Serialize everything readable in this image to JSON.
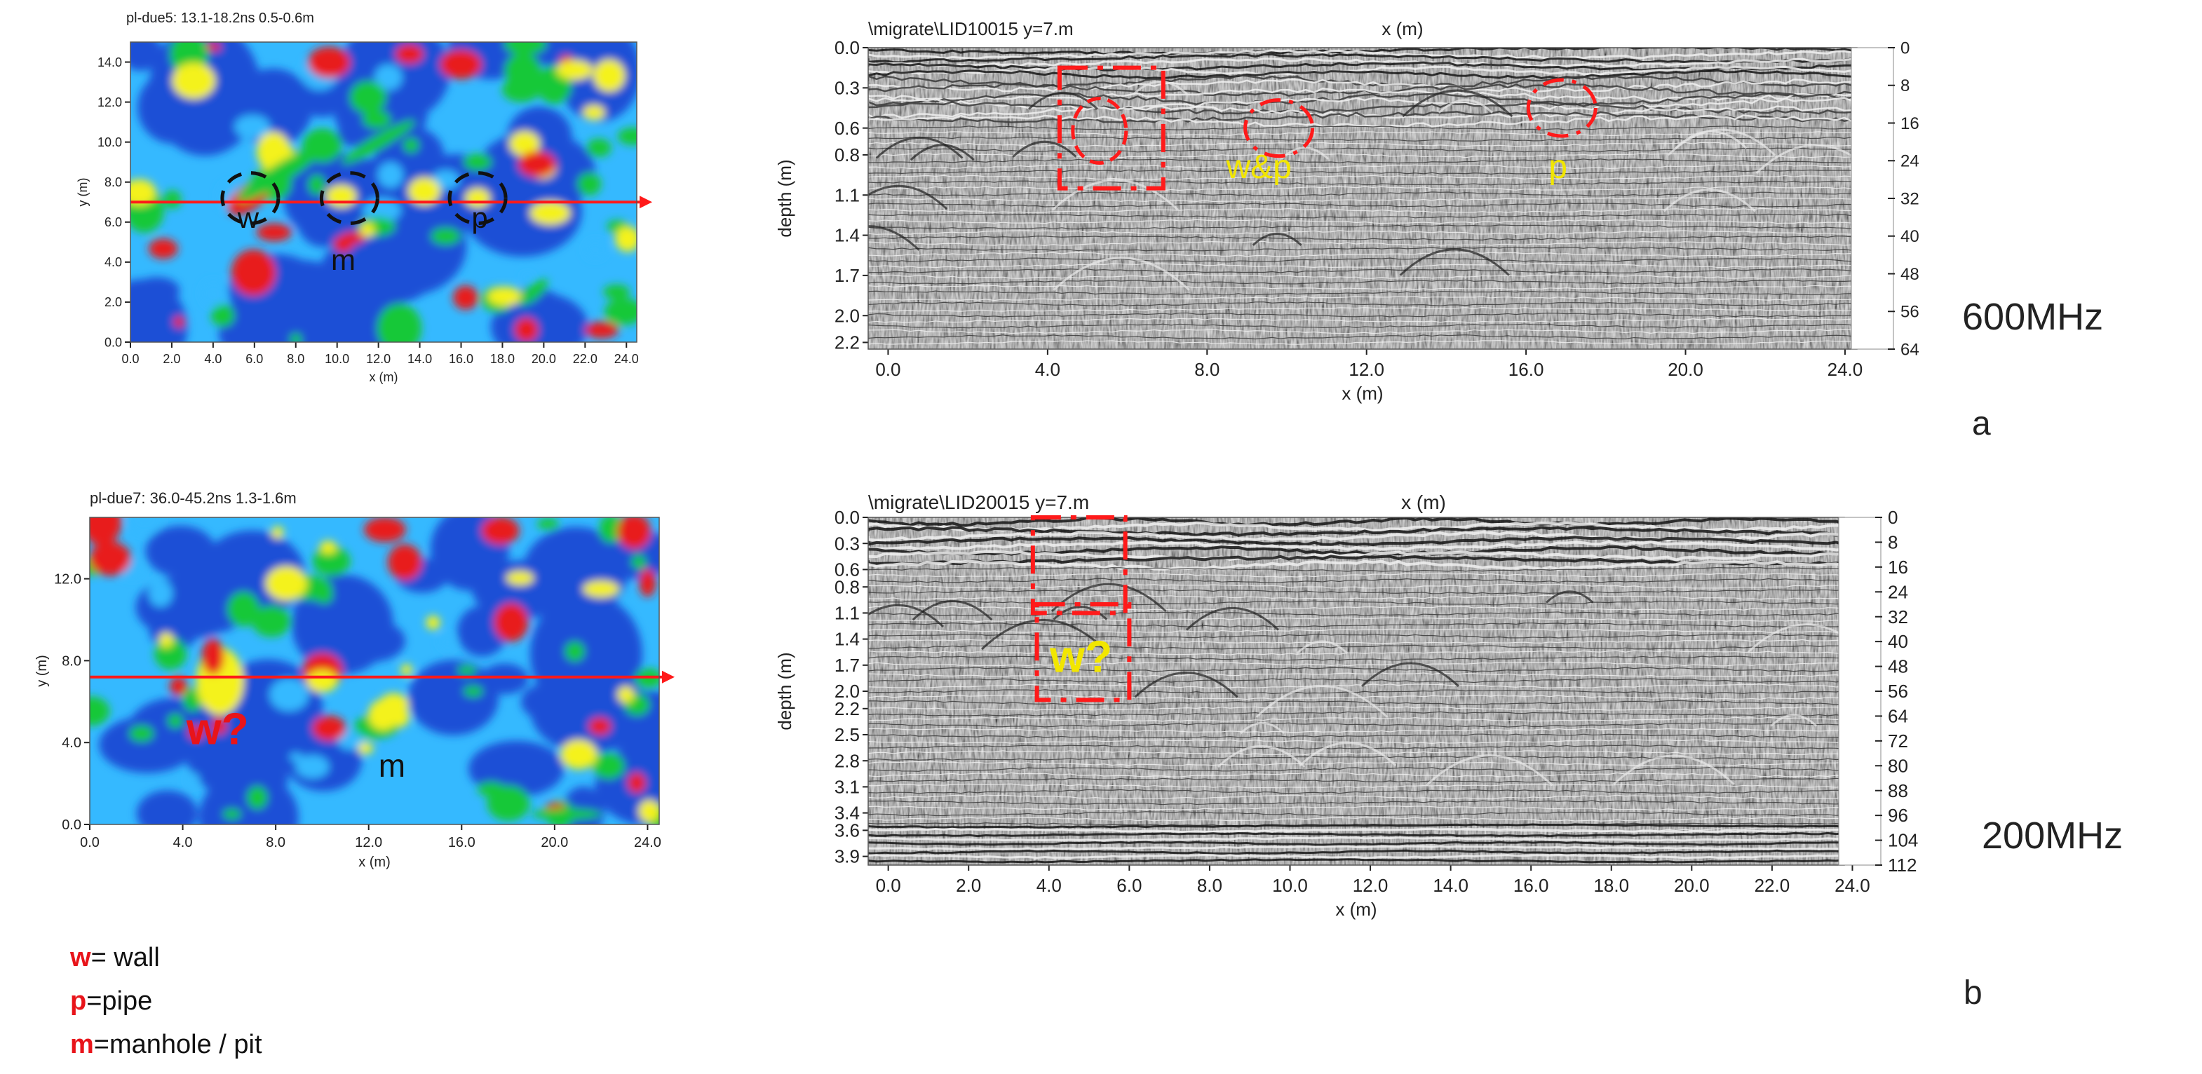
{
  "colors": {
    "axis": "#222222",
    "red": "#ff1a1a",
    "annotation_red": "#e8141a",
    "annotation_yellow": "#f2e600",
    "map_low": "#1b4fd6",
    "map_mid": "#35b9ff",
    "map_green": "#19c837",
    "map_yellow": "#f4f21a",
    "map_high": "#e81e1e"
  },
  "panels": {
    "a_label": "a",
    "b_label": "b",
    "freq_a": "600MHz",
    "freq_b": "200MHz"
  },
  "legend": [
    {
      "key": "w",
      "text": "= wall"
    },
    {
      "key": "p",
      "text": "=pipe"
    },
    {
      "key": "m",
      "text": "=manhole / pit"
    }
  ],
  "chart_data": [
    {
      "id": "map_a",
      "type": "heatmap",
      "title": "pl-due5:  13.1-18.2ns  0.5-0.6m",
      "xlabel": "x (m)",
      "ylabel": "y (m)",
      "xlim": [
        0,
        24.5
      ],
      "ylim": [
        0,
        15
      ],
      "x_ticks": [
        "0.0",
        "2.0",
        "4.0",
        "6.0",
        "8.0",
        "10.0",
        "12.0",
        "14.0",
        "16.0",
        "18.0",
        "20.0",
        "22.0",
        "24.0"
      ],
      "y_ticks": [
        "0.0",
        "2.0",
        "4.0",
        "6.0",
        "8.0",
        "10.0",
        "12.0",
        "14.0"
      ],
      "profile_line_y": 7.0,
      "annotations": [
        {
          "label": "w",
          "x": 5.7,
          "y": 6.2
        },
        {
          "label": "m",
          "x": 10.3,
          "y": 4.1
        },
        {
          "label": "p",
          "x": 16.9,
          "y": 6.2
        }
      ],
      "circles": [
        {
          "x": 5.8,
          "y": 7.2
        },
        {
          "x": 10.6,
          "y": 7.2
        },
        {
          "x": 16.8,
          "y": 7.2
        }
      ]
    },
    {
      "id": "radar_a",
      "type": "heatmap",
      "title": "\\migrate\\LID10015   y=7.m",
      "top_xlabel": "x (m)",
      "xlabel": "x (m)",
      "ylabel": "depth (m)",
      "xlim": [
        -0.5,
        24.3
      ],
      "ylim": [
        0,
        2.25
      ],
      "x_ticks": [
        "0.0",
        "4.0",
        "8.0",
        "12.0",
        "16.0",
        "20.0",
        "24.0"
      ],
      "y_ticks": [
        "0.0",
        "0.3",
        "0.6",
        "0.8",
        "1.1",
        "1.4",
        "1.7",
        "2.0",
        "2.2"
      ],
      "right_ticks": [
        "0",
        "8",
        "16",
        "24",
        "32",
        "40",
        "48",
        "56",
        "64"
      ],
      "annotations": [
        {
          "label": "w&p",
          "x": 9.3,
          "y": 0.9
        },
        {
          "label": "p",
          "x": 16.8,
          "y": 0.9
        }
      ]
    },
    {
      "id": "map_b",
      "type": "heatmap",
      "title": "pl-due7:  36.0-45.2ns  1.3-1.6m",
      "xlabel": "x (m)",
      "ylabel": "y (m)",
      "xlim": [
        0,
        24.5
      ],
      "ylim": [
        0,
        15
      ],
      "x_ticks": [
        "0.0",
        "4.0",
        "8.0",
        "12.0",
        "16.0",
        "20.0",
        "24.0"
      ],
      "y_ticks": [
        "0.0",
        "4.0",
        "8.0",
        "12.0"
      ],
      "profile_line_y": 7.2,
      "annotations": [
        {
          "label": "w?",
          "x": 5.5,
          "y": 4.6
        },
        {
          "label": "m",
          "x": 13.0,
          "y": 2.8
        }
      ]
    },
    {
      "id": "radar_b",
      "type": "heatmap",
      "title": "\\migrate\\LID20015    y=7.m",
      "top_xlabel": "x (m)",
      "xlabel": "x (m)",
      "ylabel": "depth (m)",
      "xlim": [
        -0.5,
        23.8
      ],
      "ylim": [
        0,
        4.0
      ],
      "x_ticks": [
        "0.0",
        "2.0",
        "4.0",
        "6.0",
        "8.0",
        "10.0",
        "12.0",
        "14.0",
        "16.0",
        "18.0",
        "20.0",
        "22.0",
        "24.0"
      ],
      "y_ticks": [
        "0.0",
        "0.3",
        "0.6",
        "0.8",
        "1.1",
        "1.4",
        "1.7",
        "2.0",
        "2.2",
        "2.5",
        "2.8",
        "3.1",
        "3.4",
        "3.6",
        "3.9"
      ],
      "right_ticks": [
        "0",
        "8",
        "16",
        "24",
        "32",
        "40",
        "48",
        "56",
        "64",
        "72",
        "80",
        "88",
        "96",
        "104",
        "112"
      ],
      "annotations": [
        {
          "label": "w?",
          "x": 4.8,
          "y": 1.6
        }
      ]
    }
  ]
}
